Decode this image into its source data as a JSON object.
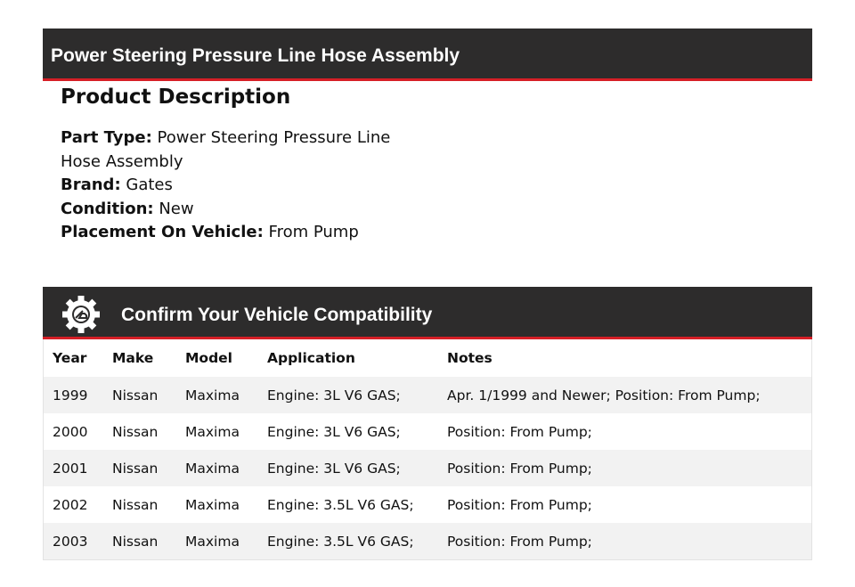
{
  "title": "Power Steering Pressure Line Hose Assembly",
  "description": {
    "heading": "Product Description",
    "fields": [
      {
        "label": "Part Type:",
        "value": "Power Steering Pressure Line Hose Assembly"
      },
      {
        "label": "Brand:",
        "value": "Gates"
      },
      {
        "label": "Condition:",
        "value": "New"
      },
      {
        "label": "Placement On Vehicle:",
        "value": "From Pump"
      }
    ]
  },
  "compat": {
    "title": "Confirm Your Vehicle Compatibility",
    "icon": "gear-vehicle-icon",
    "columns": [
      "Year",
      "Make",
      "Model",
      "Application",
      "Notes"
    ],
    "rows": [
      [
        "1999",
        "Nissan",
        "Maxima",
        "Engine: 3L V6 GAS;",
        "Apr. 1/1999 and Newer; Position: From Pump;"
      ],
      [
        "2000",
        "Nissan",
        "Maxima",
        "Engine: 3L V6 GAS;",
        "Position: From Pump;"
      ],
      [
        "2001",
        "Nissan",
        "Maxima",
        "Engine: 3L V6 GAS;",
        "Position: From Pump;"
      ],
      [
        "2002",
        "Nissan",
        "Maxima",
        "Engine: 3.5L V6 GAS;",
        "Position: From Pump;"
      ],
      [
        "2003",
        "Nissan",
        "Maxima",
        "Engine: 3.5L V6 GAS;",
        "Position: From Pump;"
      ]
    ]
  },
  "colors": {
    "header": "#2d2c2c",
    "accent": "#d61f26"
  }
}
